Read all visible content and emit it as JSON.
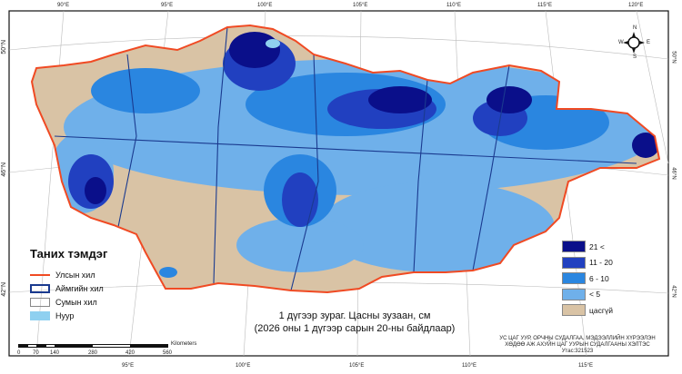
{
  "map": {
    "title_line1": "1 дүгээр зураг. Цасны зузаан, см",
    "title_line2": "(2026 оны 1 дүгээр сарын 20-ны байдлаар)",
    "top_lon_ticks": [
      "90°E",
      "95°E",
      "100°E",
      "105°E",
      "110°E",
      "115°E",
      "120°E"
    ],
    "bottom_lon_ticks": [
      "95°E",
      "100°E",
      "105°E",
      "110°E",
      "115°E"
    ],
    "left_lat_ticks": [
      "50°N",
      "46°N",
      "42°N"
    ],
    "right_lat_ticks": [
      "50°N",
      "46°N",
      "42°N"
    ],
    "north_arrow": {
      "icon": "compass-rose-icon",
      "labels": [
        "N",
        "E",
        "S",
        "W"
      ]
    }
  },
  "legend": {
    "title": "Таних тэмдэг",
    "items": [
      {
        "label": "Улсын хил",
        "color": "#f04a23"
      },
      {
        "label": "Аймгийн хил",
        "color": "#1a3a8f"
      },
      {
        "label": "Сумын хил",
        "color": "#888888"
      },
      {
        "label": "Нуур",
        "color": "#8fd0f0"
      }
    ]
  },
  "classes": [
    {
      "label": "21 <",
      "color": "#0a0f8a"
    },
    {
      "label": "11 - 20",
      "color": "#2140c0"
    },
    {
      "label": "6 - 10",
      "color": "#2a86e0"
    },
    {
      "label": "<  5",
      "color": "#6fb0ea"
    },
    {
      "label": "цасгүй",
      "color": "#d9c3a5"
    }
  ],
  "scale_bar": {
    "unit": "Kilometers",
    "ticks": [
      "0",
      "70",
      "140",
      "280",
      "420",
      "560"
    ]
  },
  "credits": {
    "line1": "УС ЦАГ УУР, ОРЧНЫ СУДАЛГАА, МЭДЭЭЛЛИЙН ХҮРЭЭЛЭН",
    "line2": "ХӨДӨӨ АЖ АХУЙН ЦАГ УУРЫН СУДАЛГААНЫ ХЭЛТЭС",
    "line3": "Утас:321523"
  }
}
